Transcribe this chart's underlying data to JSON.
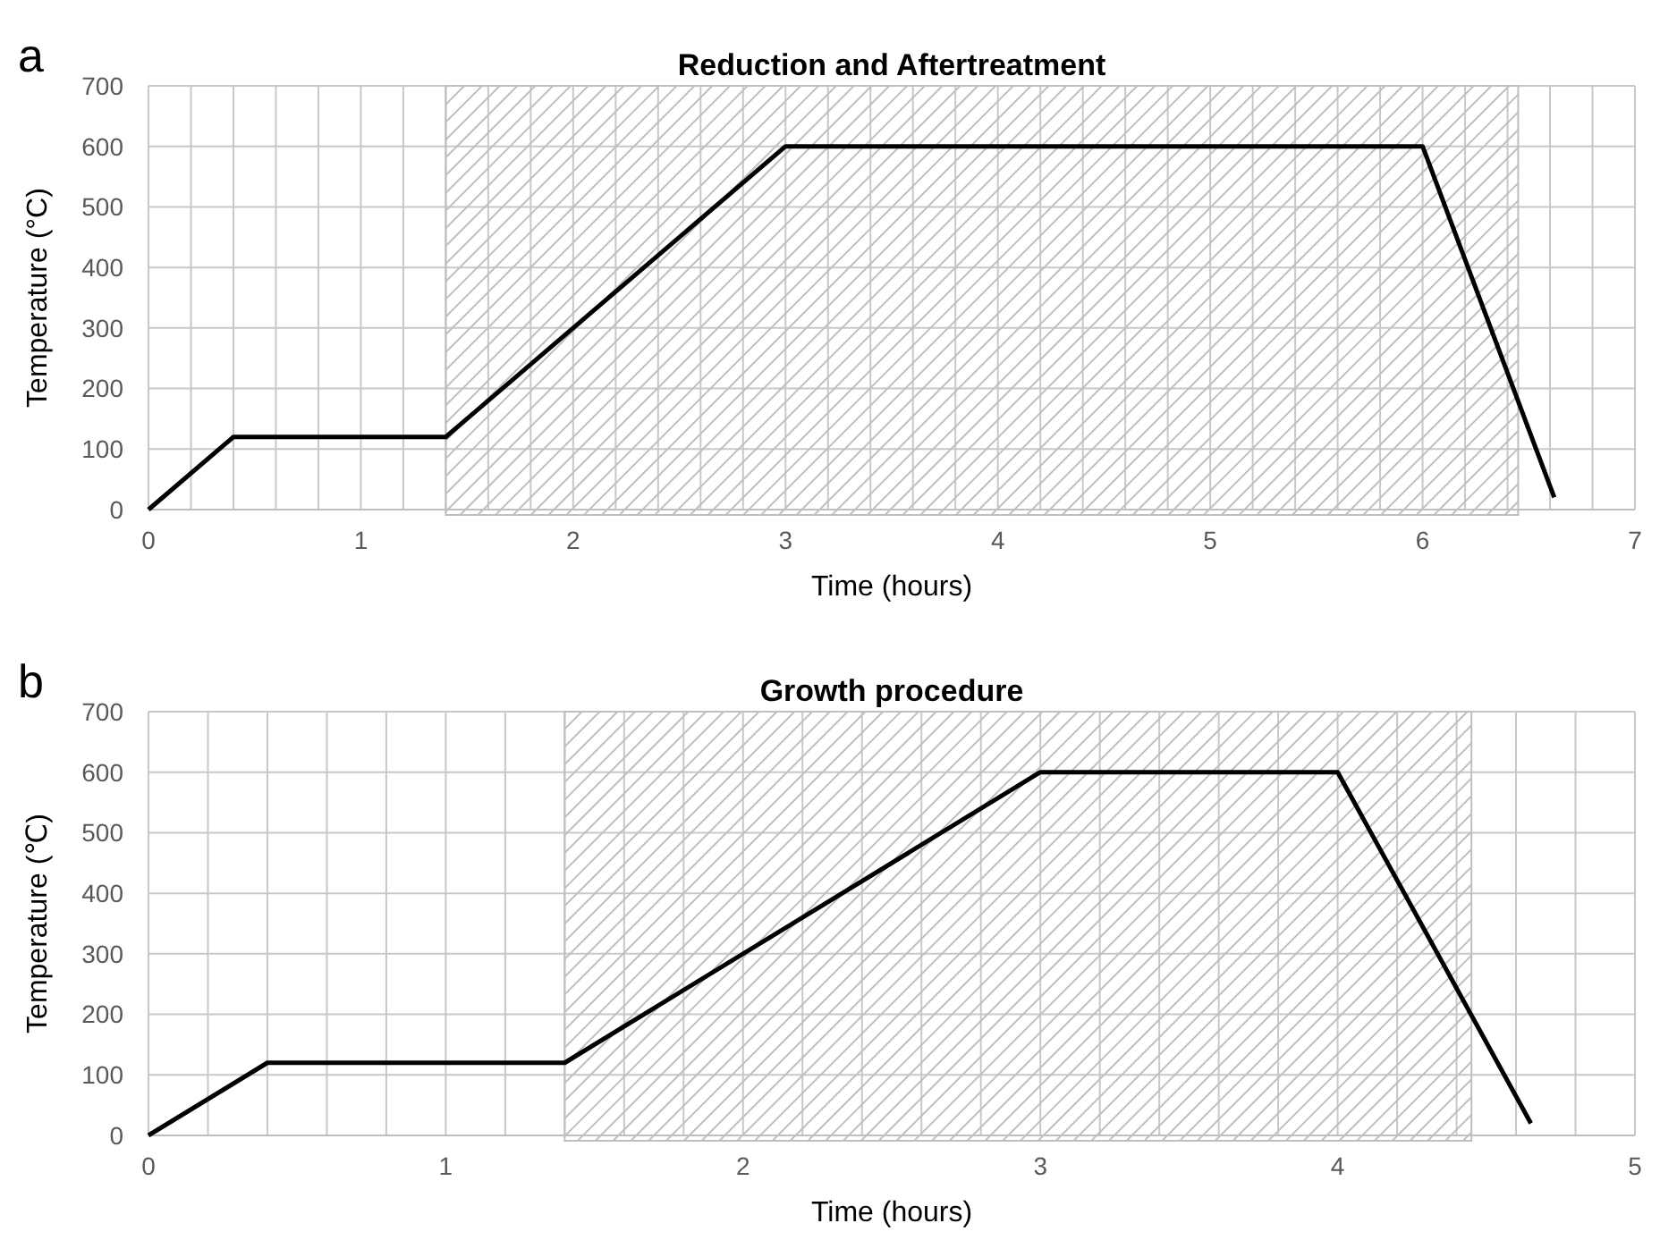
{
  "chart_data": [
    {
      "type": "line",
      "title": "Reduction and Aftertreatment",
      "xlabel": "Time (hours)",
      "ylabel": "Temperature (°C)",
      "annotations": [
        "a"
      ],
      "x": [
        0,
        0.4,
        1.4,
        3,
        6,
        6.62
      ],
      "series": [
        {
          "color": "#000000",
          "values": [
            0,
            120,
            120,
            600,
            600,
            20
          ]
        }
      ],
      "xlim": [
        0,
        7
      ],
      "xticks": [
        0,
        {
          "value": 0.2,
          "label": null
        },
        {
          "value": 0.4,
          "label": null
        },
        {
          "value": 0.6,
          "label": null
        },
        {
          "value": 0.8,
          "label": null
        },
        1,
        {
          "value": 1.2,
          "label": null
        },
        {
          "value": 1.4,
          "label": null
        },
        {
          "value": 1.6,
          "label": null
        },
        {
          "value": 1.8,
          "label": null
        },
        2,
        {
          "value": 2.2,
          "label": null
        },
        {
          "value": 2.4,
          "label": null
        },
        {
          "value": 2.6,
          "label": null
        },
        {
          "value": 2.8,
          "label": null
        },
        3,
        {
          "value": 3.2,
          "label": null
        },
        {
          "value": 3.4,
          "label": null
        },
        {
          "value": 3.6,
          "label": null
        },
        {
          "value": 3.8,
          "label": null
        },
        4,
        {
          "value": 4.2,
          "label": null
        },
        {
          "value": 4.4,
          "label": null
        },
        {
          "value": 4.6,
          "label": null
        },
        {
          "value": 4.8,
          "label": null
        },
        5,
        {
          "value": 5.2,
          "label": null
        },
        {
          "value": 5.4,
          "label": null
        },
        {
          "value": 5.6,
          "label": null
        },
        {
          "value": 5.8,
          "label": null
        },
        6,
        {
          "value": 6.2,
          "label": null
        },
        {
          "value": 6.4,
          "label": null
        },
        {
          "value": 6.6,
          "label": null
        },
        {
          "value": 6.8,
          "label": null
        },
        7
      ],
      "ylim": [
        0,
        700
      ],
      "yticks": [
        0,
        100,
        200,
        300,
        400,
        500,
        600,
        700
      ],
      "grid": true,
      "line_style": "solid",
      "bands": [
        {
          "axis": "x",
          "from": 1.4,
          "to": 6.45,
          "color": "#bfbfbf"
        }
      ]
    },
    {
      "type": "line",
      "title": "Growth procedure",
      "xlabel": "Time (hours)",
      "ylabel": "Temperature (℃)",
      "annotations": [
        "b"
      ],
      "x": [
        0,
        0.4,
        1.4,
        3,
        4,
        4.65
      ],
      "series": [
        {
          "color": "#000000",
          "values": [
            0,
            120,
            120,
            600,
            600,
            20
          ]
        }
      ],
      "xlim": [
        0,
        5
      ],
      "xticks": [
        0,
        {
          "value": 0.2,
          "label": null
        },
        {
          "value": 0.4,
          "label": null
        },
        {
          "value": 0.6,
          "label": null
        },
        {
          "value": 0.8,
          "label": null
        },
        1,
        {
          "value": 1.2,
          "label": null
        },
        {
          "value": 1.4,
          "label": null
        },
        {
          "value": 1.6,
          "label": null
        },
        {
          "value": 1.8,
          "label": null
        },
        2,
        {
          "value": 2.2,
          "label": null
        },
        {
          "value": 2.4,
          "label": null
        },
        {
          "value": 2.6,
          "label": null
        },
        {
          "value": 2.8,
          "label": null
        },
        3,
        {
          "value": 3.2,
          "label": null
        },
        {
          "value": 3.4,
          "label": null
        },
        {
          "value": 3.6,
          "label": null
        },
        {
          "value": 3.8,
          "label": null
        },
        4,
        {
          "value": 4.2,
          "label": null
        },
        {
          "value": 4.4,
          "label": null
        },
        {
          "value": 4.6,
          "label": null
        },
        {
          "value": 4.8,
          "label": null
        },
        5
      ],
      "ylim": [
        0,
        700
      ],
      "yticks": [
        0,
        100,
        200,
        300,
        400,
        500,
        600,
        700
      ],
      "grid": true,
      "line_style": "solid",
      "bands": [
        {
          "axis": "x",
          "from": 1.4,
          "to": 4.45,
          "color": "#bfbfbf"
        }
      ]
    }
  ]
}
